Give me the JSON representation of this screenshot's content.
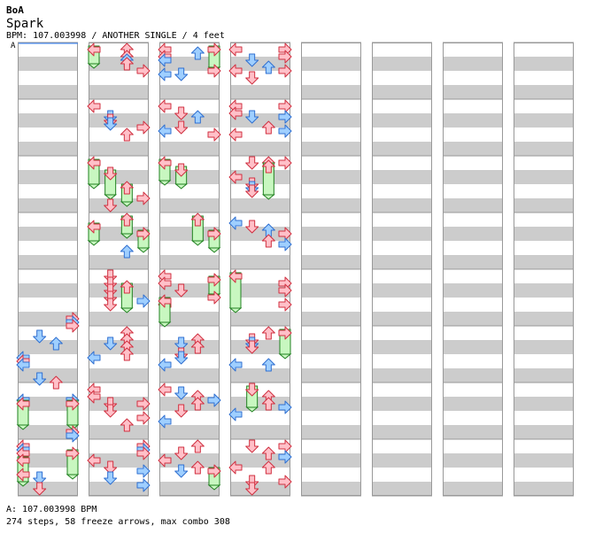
{
  "header": {
    "artist": "BoA",
    "title": "Spark",
    "info": "BPM: 107.003998 / ANOTHER SINGLE / 4 feet",
    "marker": "A"
  },
  "footer": {
    "bpm_line": "A: 107.003998 BPM",
    "stats_line": "274 steps, 58 freeze arrows, max combo 308"
  },
  "colors": {
    "stripe": "#cccccc",
    "border": "#999999",
    "arrow_red_fill": "#ffc0c8",
    "arrow_red_stroke": "#d03040",
    "arrow_blue_fill": "#9fcfff",
    "arrow_blue_stroke": "#2f6fd0",
    "freeze_fill": "#c8f7c0",
    "freeze_stroke": "#208020"
  },
  "icons": [
    "left-arrow-icon",
    "down-arrow-icon",
    "up-arrow-icon",
    "right-arrow-icon",
    "freeze-arrow-icon"
  ],
  "chart_data": {
    "type": "step-chart",
    "lanes": [
      "left",
      "down",
      "up",
      "right"
    ],
    "columns": 8,
    "measures_per_column": 8,
    "notes": [
      {
        "c": 0,
        "lane": 3,
        "b": 19.0
      },
      {
        "c": 0,
        "lane": 3,
        "b": 19.25
      },
      {
        "c": 0,
        "lane": 3,
        "b": 19.5
      },
      {
        "c": 0,
        "lane": 1,
        "b": 20.25
      },
      {
        "c": 0,
        "lane": 2,
        "b": 20.75
      },
      {
        "c": 0,
        "lane": 0,
        "b": 21.75
      },
      {
        "c": 0,
        "lane": 0,
        "b": 22.0
      },
      {
        "c": 0,
        "lane": 0,
        "b": 22.25
      },
      {
        "c": 0,
        "lane": 1,
        "b": 23.25
      },
      {
        "c": 0,
        "lane": 2,
        "b": 23.5
      },
      {
        "c": 0,
        "lane": 0,
        "b": 24.75
      },
      {
        "c": 0,
        "lane": 3,
        "b": 24.75
      },
      {
        "c": 0,
        "lane": 0,
        "b": 25.0,
        "f": 1.5
      },
      {
        "c": 0,
        "lane": 3,
        "b": 25.0,
        "f": 1.5
      },
      {
        "c": 0,
        "lane": 3,
        "b": 27.0
      },
      {
        "c": 0,
        "lane": 3,
        "b": 27.25
      },
      {
        "c": 0,
        "lane": 0,
        "b": 28.0
      },
      {
        "c": 0,
        "lane": 0,
        "b": 28.25
      },
      {
        "c": 0,
        "lane": 3,
        "b": 28.5,
        "f": 1.5
      },
      {
        "c": 0,
        "lane": 0,
        "b": 28.5
      },
      {
        "c": 0,
        "lane": 0,
        "b": 29.0,
        "f": 1.5
      },
      {
        "c": 0,
        "lane": 0,
        "b": 30.0
      },
      {
        "c": 0,
        "lane": 1,
        "b": 30.25
      },
      {
        "c": 0,
        "lane": 1,
        "b": 31.0
      },
      {
        "c": 1,
        "lane": 0,
        "b": 0.0,
        "f": 1.0
      },
      {
        "c": 1,
        "lane": 2,
        "b": 0.0
      },
      {
        "c": 1,
        "lane": 2,
        "b": 0.5
      },
      {
        "c": 1,
        "lane": 2,
        "b": 0.75
      },
      {
        "c": 1,
        "lane": 2,
        "b": 1.0
      },
      {
        "c": 1,
        "lane": 3,
        "b": 1.5
      },
      {
        "c": 1,
        "lane": 0,
        "b": 4.0
      },
      {
        "c": 1,
        "lane": 1,
        "b": 4.75
      },
      {
        "c": 1,
        "lane": 1,
        "b": 5.0
      },
      {
        "c": 1,
        "lane": 1,
        "b": 5.25
      },
      {
        "c": 1,
        "lane": 3,
        "b": 5.5
      },
      {
        "c": 1,
        "lane": 2,
        "b": 6.0
      },
      {
        "c": 1,
        "lane": 0,
        "b": 8.0,
        "f": 1.5
      },
      {
        "c": 1,
        "lane": 1,
        "b": 8.75,
        "f": 1.5
      },
      {
        "c": 1,
        "lane": 2,
        "b": 9.75,
        "f": 1.0
      },
      {
        "c": 1,
        "lane": 3,
        "b": 10.5
      },
      {
        "c": 1,
        "lane": 1,
        "b": 11.0
      },
      {
        "c": 1,
        "lane": 0,
        "b": 12.5,
        "f": 1.0
      },
      {
        "c": 1,
        "lane": 2,
        "b": 12.0,
        "f": 1.0
      },
      {
        "c": 1,
        "lane": 3,
        "b": 13.0,
        "f": 1.0
      },
      {
        "c": 1,
        "lane": 2,
        "b": 14.25
      },
      {
        "c": 1,
        "lane": 1,
        "b": 16.0
      },
      {
        "c": 1,
        "lane": 1,
        "b": 16.5
      },
      {
        "c": 1,
        "lane": 2,
        "b": 16.75,
        "f": 1.5
      },
      {
        "c": 1,
        "lane": 1,
        "b": 17.0
      },
      {
        "c": 1,
        "lane": 1,
        "b": 17.5
      },
      {
        "c": 1,
        "lane": 3,
        "b": 17.75
      },
      {
        "c": 1,
        "lane": 1,
        "b": 18.0
      },
      {
        "c": 1,
        "lane": 2,
        "b": 20.0
      },
      {
        "c": 1,
        "lane": 2,
        "b": 20.5
      },
      {
        "c": 1,
        "lane": 1,
        "b": 20.75
      },
      {
        "c": 1,
        "lane": 2,
        "b": 21.0
      },
      {
        "c": 1,
        "lane": 2,
        "b": 21.5
      },
      {
        "c": 1,
        "lane": 0,
        "b": 21.75
      },
      {
        "c": 1,
        "lane": 0,
        "b": 24.0
      },
      {
        "c": 1,
        "lane": 0,
        "b": 24.5
      },
      {
        "c": 1,
        "lane": 1,
        "b": 25.0
      },
      {
        "c": 1,
        "lane": 3,
        "b": 25.0
      },
      {
        "c": 1,
        "lane": 1,
        "b": 25.5
      },
      {
        "c": 1,
        "lane": 3,
        "b": 26.0
      },
      {
        "c": 1,
        "lane": 2,
        "b": 26.5
      },
      {
        "c": 1,
        "lane": 3,
        "b": 28.0
      },
      {
        "c": 1,
        "lane": 3,
        "b": 28.25
      },
      {
        "c": 1,
        "lane": 3,
        "b": 28.5
      },
      {
        "c": 1,
        "lane": 0,
        "b": 29.0
      },
      {
        "c": 1,
        "lane": 1,
        "b": 29.5
      },
      {
        "c": 1,
        "lane": 3,
        "b": 29.75
      },
      {
        "c": 1,
        "lane": 1,
        "b": 30.25
      },
      {
        "c": 1,
        "lane": 3,
        "b": 30.75
      },
      {
        "c": 2,
        "lane": 0,
        "b": 0.0
      },
      {
        "c": 2,
        "lane": 2,
        "b": 0.25
      },
      {
        "c": 2,
        "lane": 0,
        "b": 0.5
      },
      {
        "c": 2,
        "lane": 0,
        "b": 0.75
      },
      {
        "c": 2,
        "lane": 3,
        "b": 0.0,
        "f": 1.25
      },
      {
        "c": 2,
        "lane": 3,
        "b": 1.5
      },
      {
        "c": 2,
        "lane": 0,
        "b": 1.75
      },
      {
        "c": 2,
        "lane": 1,
        "b": 1.75
      },
      {
        "c": 2,
        "lane": 0,
        "b": 4.0
      },
      {
        "c": 2,
        "lane": 1,
        "b": 4.5
      },
      {
        "c": 2,
        "lane": 2,
        "b": 4.75
      },
      {
        "c": 2,
        "lane": 1,
        "b": 5.5
      },
      {
        "c": 2,
        "lane": 0,
        "b": 5.75
      },
      {
        "c": 2,
        "lane": 3,
        "b": 6.0
      },
      {
        "c": 2,
        "lane": 0,
        "b": 8.0,
        "f": 1.25
      },
      {
        "c": 2,
        "lane": 1,
        "b": 8.5,
        "f": 1.0
      },
      {
        "c": 2,
        "lane": 2,
        "b": 12.0,
        "f": 1.5
      },
      {
        "c": 2,
        "lane": 3,
        "b": 13.0,
        "f": 1.0
      },
      {
        "c": 2,
        "lane": 0,
        "b": 16.0
      },
      {
        "c": 2,
        "lane": 0,
        "b": 16.5
      },
      {
        "c": 2,
        "lane": 3,
        "b": 16.25,
        "f": 1.0
      },
      {
        "c": 2,
        "lane": 1,
        "b": 17.0
      },
      {
        "c": 2,
        "lane": 3,
        "b": 17.5
      },
      {
        "c": 2,
        "lane": 0,
        "b": 18.0
      },
      {
        "c": 2,
        "lane": 0,
        "b": 17.75,
        "f": 1.5
      },
      {
        "c": 2,
        "lane": 2,
        "b": 20.5
      },
      {
        "c": 2,
        "lane": 1,
        "b": 20.75
      },
      {
        "c": 2,
        "lane": 2,
        "b": 21.0
      },
      {
        "c": 2,
        "lane": 1,
        "b": 21.5
      },
      {
        "c": 2,
        "lane": 1,
        "b": 21.75
      },
      {
        "c": 2,
        "lane": 0,
        "b": 22.25
      },
      {
        "c": 2,
        "lane": 0,
        "b": 24.0
      },
      {
        "c": 2,
        "lane": 1,
        "b": 24.25
      },
      {
        "c": 2,
        "lane": 2,
        "b": 24.5
      },
      {
        "c": 2,
        "lane": 3,
        "b": 24.75
      },
      {
        "c": 2,
        "lane": 2,
        "b": 25.0
      },
      {
        "c": 2,
        "lane": 1,
        "b": 25.5
      },
      {
        "c": 2,
        "lane": 0,
        "b": 26.25
      },
      {
        "c": 2,
        "lane": 2,
        "b": 28.0
      },
      {
        "c": 2,
        "lane": 1,
        "b": 28.5
      },
      {
        "c": 2,
        "lane": 0,
        "b": 29.0
      },
      {
        "c": 2,
        "lane": 1,
        "b": 29.75
      },
      {
        "c": 2,
        "lane": 2,
        "b": 29.5
      },
      {
        "c": 2,
        "lane": 3,
        "b": 29.75,
        "f": 1.0
      },
      {
        "c": 3,
        "lane": 0,
        "b": 0.0
      },
      {
        "c": 3,
        "lane": 3,
        "b": 0.0
      },
      {
        "c": 3,
        "lane": 3,
        "b": 0.5
      },
      {
        "c": 3,
        "lane": 1,
        "b": 0.75
      },
      {
        "c": 3,
        "lane": 0,
        "b": 1.5
      },
      {
        "c": 3,
        "lane": 2,
        "b": 1.25
      },
      {
        "c": 3,
        "lane": 3,
        "b": 1.5
      },
      {
        "c": 3,
        "lane": 1,
        "b": 2.0
      },
      {
        "c": 3,
        "lane": 0,
        "b": 4.0
      },
      {
        "c": 3,
        "lane": 3,
        "b": 4.0
      },
      {
        "c": 3,
        "lane": 0,
        "b": 4.5
      },
      {
        "c": 3,
        "lane": 1,
        "b": 4.75
      },
      {
        "c": 3,
        "lane": 3,
        "b": 4.75
      },
      {
        "c": 3,
        "lane": 2,
        "b": 5.5
      },
      {
        "c": 3,
        "lane": 3,
        "b": 5.75
      },
      {
        "c": 3,
        "lane": 0,
        "b": 6.0
      },
      {
        "c": 3,
        "lane": 1,
        "b": 8.0
      },
      {
        "c": 3,
        "lane": 2,
        "b": 8.0
      },
      {
        "c": 3,
        "lane": 3,
        "b": 8.0
      },
      {
        "c": 3,
        "lane": 0,
        "b": 9.0
      },
      {
        "c": 3,
        "lane": 1,
        "b": 9.5
      },
      {
        "c": 3,
        "lane": 1,
        "b": 9.75
      },
      {
        "c": 3,
        "lane": 1,
        "b": 10.0
      },
      {
        "c": 3,
        "lane": 2,
        "b": 8.25,
        "f": 2.0
      },
      {
        "c": 3,
        "lane": 0,
        "b": 12.25
      },
      {
        "c": 3,
        "lane": 1,
        "b": 12.5
      },
      {
        "c": 3,
        "lane": 2,
        "b": 12.75
      },
      {
        "c": 3,
        "lane": 3,
        "b": 13.0
      },
      {
        "c": 3,
        "lane": 2,
        "b": 13.5
      },
      {
        "c": 3,
        "lane": 3,
        "b": 13.75
      },
      {
        "c": 3,
        "lane": 0,
        "b": 16.0,
        "f": 2.25
      },
      {
        "c": 3,
        "lane": 3,
        "b": 16.5
      },
      {
        "c": 3,
        "lane": 3,
        "b": 17.0
      },
      {
        "c": 3,
        "lane": 3,
        "b": 18.0
      },
      {
        "c": 3,
        "lane": 2,
        "b": 20.0
      },
      {
        "c": 3,
        "lane": 1,
        "b": 20.5
      },
      {
        "c": 3,
        "lane": 1,
        "b": 20.75
      },
      {
        "c": 3,
        "lane": 1,
        "b": 21.0
      },
      {
        "c": 3,
        "lane": 3,
        "b": 20.0,
        "f": 1.5
      },
      {
        "c": 3,
        "lane": 0,
        "b": 22.25
      },
      {
        "c": 3,
        "lane": 2,
        "b": 22.25
      },
      {
        "c": 3,
        "lane": 1,
        "b": 24.0,
        "f": 1.25
      },
      {
        "c": 3,
        "lane": 2,
        "b": 24.5
      },
      {
        "c": 3,
        "lane": 2,
        "b": 25.0
      },
      {
        "c": 3,
        "lane": 3,
        "b": 25.25
      },
      {
        "c": 3,
        "lane": 0,
        "b": 25.75
      },
      {
        "c": 3,
        "lane": 3,
        "b": 28.0
      },
      {
        "c": 3,
        "lane": 1,
        "b": 28.0
      },
      {
        "c": 3,
        "lane": 2,
        "b": 28.5
      },
      {
        "c": 3,
        "lane": 3,
        "b": 28.75
      },
      {
        "c": 3,
        "lane": 0,
        "b": 29.5
      },
      {
        "c": 3,
        "lane": 2,
        "b": 29.5
      },
      {
        "c": 3,
        "lane": 1,
        "b": 30.5
      },
      {
        "c": 3,
        "lane": 3,
        "b": 30.5
      },
      {
        "c": 3,
        "lane": 1,
        "b": 31.0
      }
    ]
  }
}
